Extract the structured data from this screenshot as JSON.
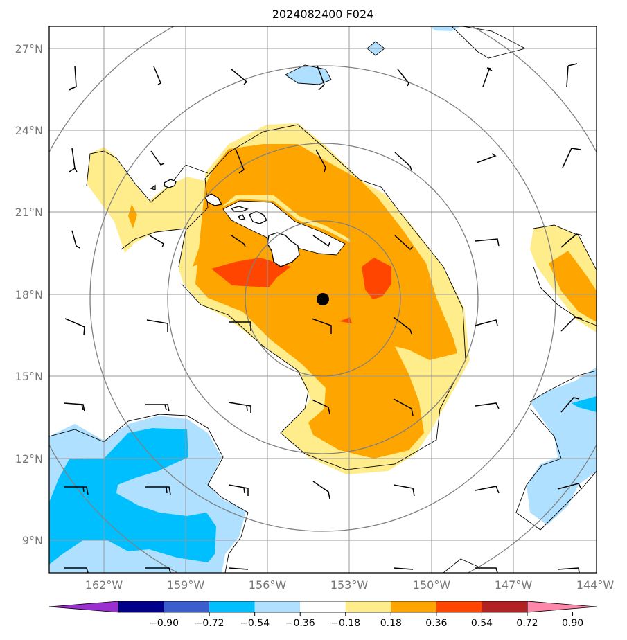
{
  "title": "2024082400 F024",
  "map": {
    "lat_labels": [
      "27°N",
      "24°N",
      "21°N",
      "18°N",
      "15°N",
      "12°N",
      "9°N"
    ],
    "lon_labels": [
      "162°W",
      "159°W",
      "156°W",
      "153°W",
      "150°W",
      "147°W",
      "144°W"
    ],
    "center_marker": {
      "lon": -154.2,
      "lat": 17.8
    }
  },
  "colorbar": {
    "ticks": [
      "−0.90",
      "−0.72",
      "−0.54",
      "−0.36",
      "−0.18",
      "0.18",
      "0.36",
      "0.54",
      "0.72",
      "0.90"
    ],
    "colors": [
      "#9b30d0",
      "#00008b",
      "#3a5fcd",
      "#00bfff",
      "#b0e0ff",
      "#ffffff",
      "#ffec8b",
      "#ffa500",
      "#ff4500",
      "#b22222",
      "#ff88aa"
    ]
  },
  "colors": {
    "light_yellow": "#ffec8b",
    "orange": "#ffa500",
    "red_orange": "#ff4500",
    "light_blue": "#b0e0ff",
    "deep_sky_blue": "#00bfff",
    "grid": "#999999",
    "range_rings": "#808080"
  }
}
